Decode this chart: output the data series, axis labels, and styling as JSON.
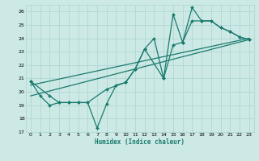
{
  "xlabel": "Humidex (Indice chaleur)",
  "background_color": "#cce9e5",
  "grid_color": "#aad4d0",
  "line_color": "#1a7a6e",
  "xlim": [
    -0.5,
    23.5
  ],
  "ylim": [
    17,
    26.5
  ],
  "yticks": [
    17,
    18,
    19,
    20,
    21,
    22,
    23,
    24,
    25,
    26
  ],
  "xticks": [
    0,
    1,
    2,
    3,
    4,
    5,
    6,
    7,
    8,
    9,
    10,
    11,
    12,
    13,
    14,
    15,
    16,
    17,
    18,
    19,
    20,
    21,
    22,
    23
  ],
  "series": [
    {
      "x": [
        0,
        1,
        2,
        3,
        4,
        5,
        6,
        7,
        8,
        9,
        10,
        11,
        12,
        13,
        14,
        15,
        16,
        17,
        18,
        19,
        20,
        21,
        22,
        23
      ],
      "y": [
        20.8,
        19.7,
        19.0,
        19.2,
        19.2,
        19.2,
        19.2,
        17.3,
        19.1,
        20.5,
        20.7,
        21.7,
        23.2,
        24.0,
        21.0,
        25.8,
        23.7,
        26.3,
        25.3,
        25.3,
        24.8,
        24.5,
        24.1,
        23.9
      ],
      "marker": "D",
      "markersize": 2.0,
      "linewidth": 0.9,
      "has_marker": true
    },
    {
      "x": [
        0,
        2,
        3,
        4,
        5,
        6,
        8,
        10,
        11,
        12,
        14,
        15,
        16,
        17,
        18,
        19,
        20,
        21,
        22,
        23
      ],
      "y": [
        20.8,
        19.7,
        19.2,
        19.2,
        19.2,
        19.2,
        20.2,
        20.7,
        21.7,
        23.2,
        21.0,
        23.5,
        23.7,
        25.3,
        25.3,
        25.3,
        24.8,
        24.5,
        24.1,
        23.9
      ],
      "marker": "D",
      "markersize": 2.0,
      "linewidth": 0.9,
      "has_marker": true
    },
    {
      "x": [
        0,
        23
      ],
      "y": [
        19.7,
        23.9
      ],
      "marker": null,
      "markersize": 0,
      "linewidth": 0.9,
      "has_marker": false
    },
    {
      "x": [
        0,
        23
      ],
      "y": [
        20.5,
        24.0
      ],
      "marker": null,
      "markersize": 0,
      "linewidth": 0.9,
      "has_marker": false
    }
  ]
}
